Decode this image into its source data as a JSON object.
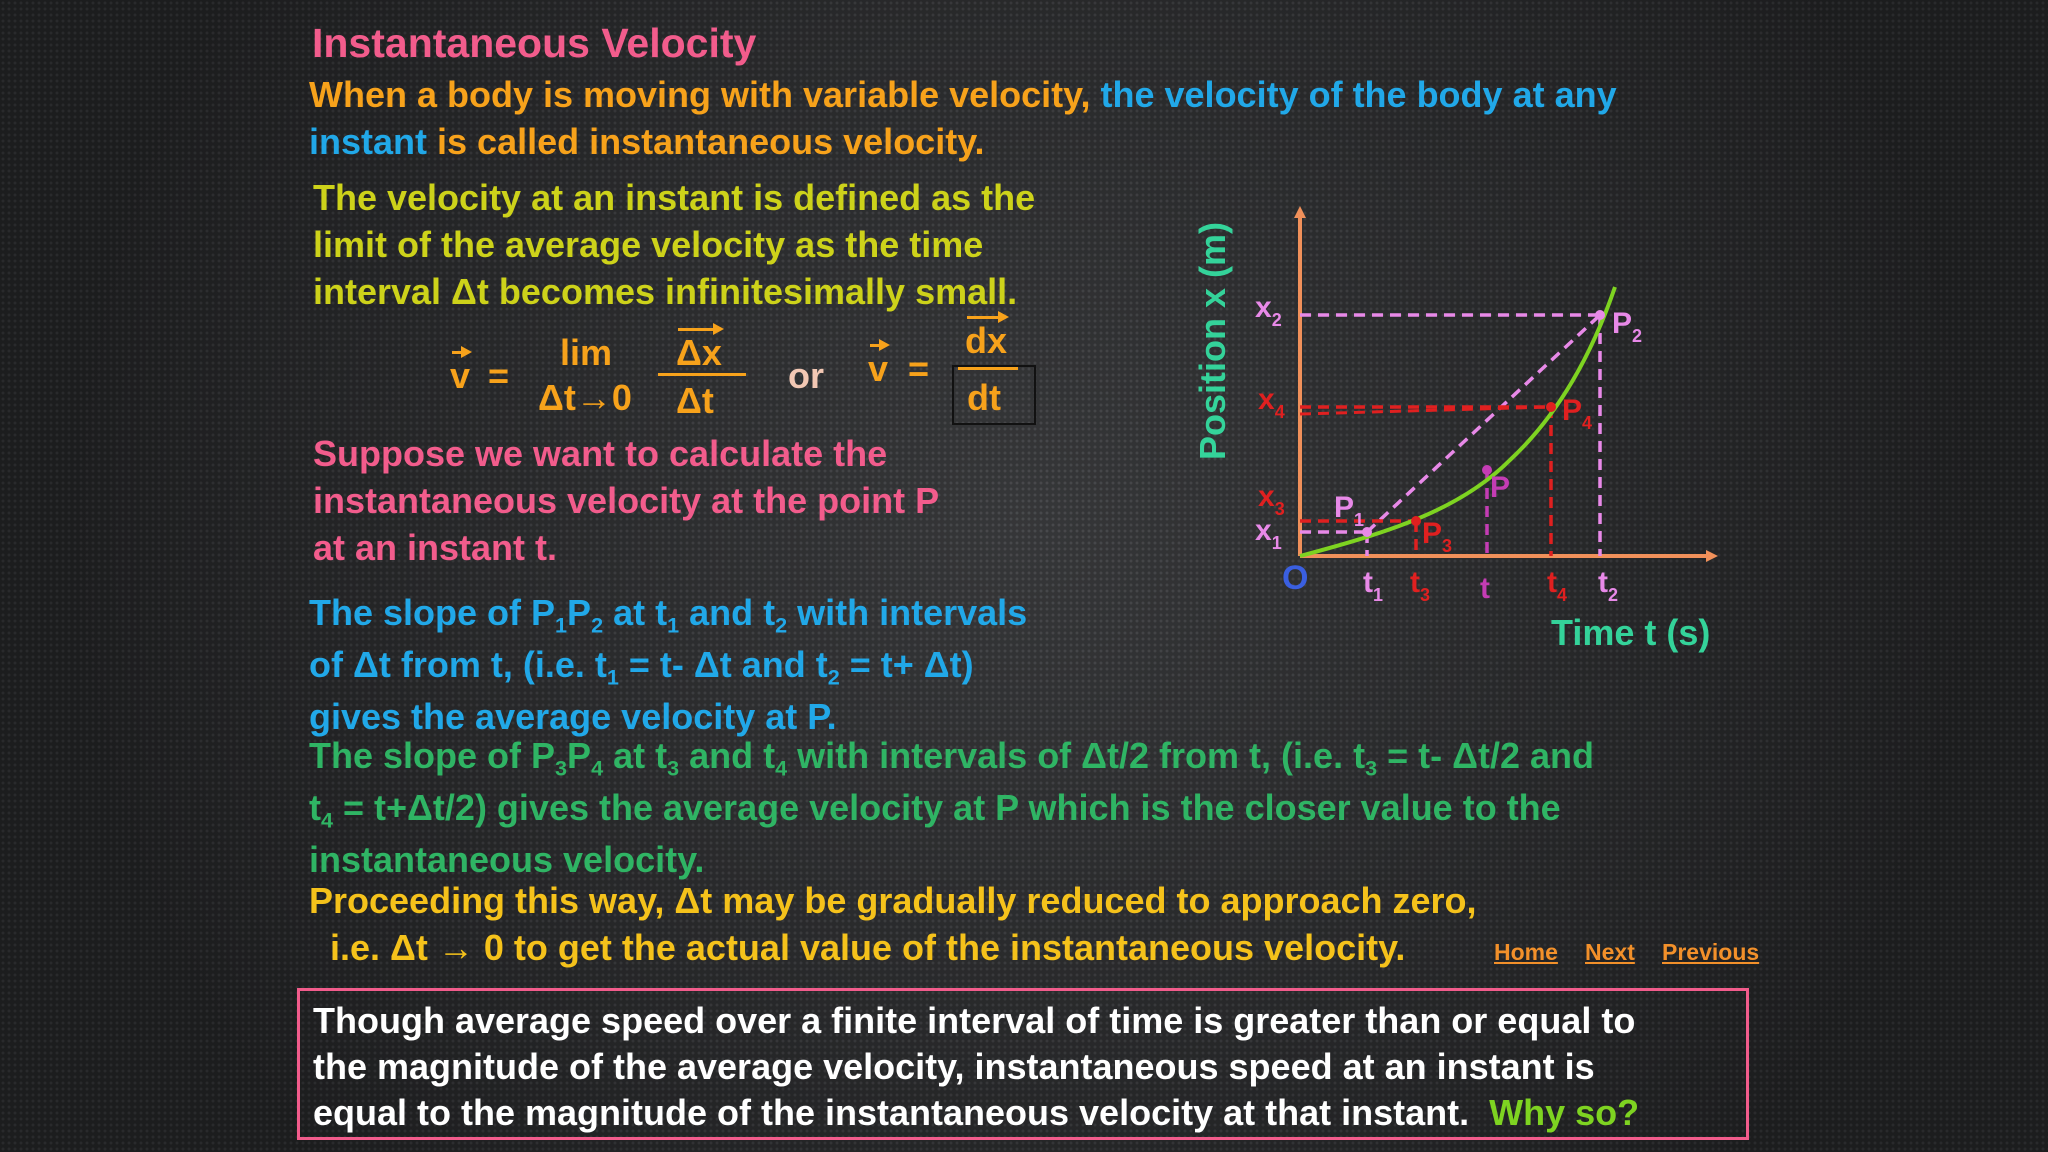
{
  "title": "Instantaneous Velocity",
  "intro": {
    "part1": "When a body is moving with variable velocity, ",
    "part2_line1": "the velocity of the body at any",
    "part2_line2": "instant",
    "part3": " is called instantaneous velocity."
  },
  "definition": {
    "line1": "The velocity at an instant is defined as the",
    "line2": "limit of the average velocity as the time",
    "line3": "interval Δt becomes infinitesimally small."
  },
  "formula": {
    "v": "v",
    "equals": "=",
    "lim": "lim",
    "limit_sub": "Δt→0",
    "numerator": "Δx",
    "denominator": "Δt",
    "or": "or",
    "dx": "dx",
    "dt": "dt"
  },
  "suppose": {
    "line1": "Suppose we want to calculate the",
    "line2": "instantaneous velocity at the point P",
    "line3": "at an instant t."
  },
  "slope1": {
    "l1": [
      "The slope of P",
      "1",
      "P",
      "2",
      " at t",
      "1",
      " and t",
      "2",
      " with intervals"
    ],
    "l2": [
      "of Δt from t, (i.e. t",
      "1",
      " = t- Δt and t",
      "2",
      " = t+ Δt)"
    ],
    "l3": "gives the average velocity at P."
  },
  "slope2": {
    "l1": [
      "The slope of P",
      "3",
      "P",
      "4",
      " at t",
      "3",
      " and t",
      "4",
      " with intervals of Δt/2 from t, (i.e. t",
      "3",
      " = t- Δt/2 and"
    ],
    "l2": [
      "t",
      "4",
      " = t+Δt/2)  gives the average velocity at P which is the closer value to the"
    ],
    "l3": "instantaneous velocity."
  },
  "proceeding": {
    "line1": "Proceeding this way, Δt may be gradually reduced to approach zero,",
    "line2": "i.e. Δt → 0 to get the actual value of the instantaneous velocity."
  },
  "nav": {
    "home": "Home",
    "next": "Next",
    "previous": "Previous"
  },
  "note": {
    "line1": "Though average speed over a finite interval of time is greater than or equal to",
    "line2": "the magnitude of the average velocity, instantaneous speed at an instant is",
    "line3": "equal to the magnitude of the instantaneous velocity at that instant.",
    "why": "Why so?"
  },
  "graph": {
    "ylabel": "Position x (m)",
    "xlabel": "Time t (s)",
    "origin": "O",
    "y_ticks": [
      {
        "base": "x",
        "sub": "2"
      },
      {
        "base": "x",
        "sub": "4"
      },
      {
        "base": "x",
        "sub": "3"
      },
      {
        "base": "x",
        "sub": "1"
      }
    ],
    "x_ticks": [
      {
        "base": "t",
        "sub": "1"
      },
      {
        "base": "t",
        "sub": "3"
      },
      {
        "base": "t",
        "sub": ""
      },
      {
        "base": "t",
        "sub": "4"
      },
      {
        "base": "t",
        "sub": "2"
      }
    ],
    "points": [
      {
        "base": "P",
        "sub": "2"
      },
      {
        "base": "P",
        "sub": "4"
      },
      {
        "base": "P",
        "sub": ""
      },
      {
        "base": "P",
        "sub": "1"
      },
      {
        "base": "P",
        "sub": "3"
      }
    ],
    "colors": {
      "axis": "#f0905a",
      "curve": "#7ed321",
      "p1p2": "#e889e8",
      "p3p4": "#e02020",
      "p": "#c43cb4",
      "label": "#34d39a",
      "origin": "#3a5fe0"
    }
  }
}
